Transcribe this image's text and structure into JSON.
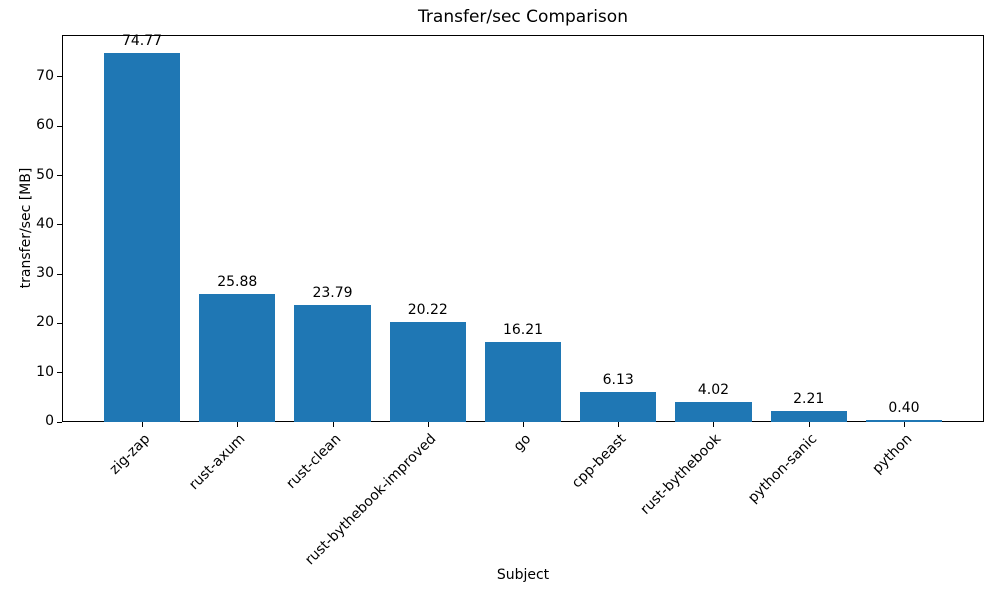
{
  "chart_data": {
    "type": "bar",
    "title": "Transfer/sec Comparison",
    "xlabel": "Subject",
    "ylabel": "transfer/sec [MB]",
    "categories": [
      "zig-zap",
      "rust-axum",
      "rust-clean",
      "rust-bythebook-improved",
      "go",
      "cpp-beast",
      "rust-bythebook",
      "python-sanic",
      "python"
    ],
    "values": [
      74.77,
      25.88,
      23.79,
      20.22,
      16.21,
      6.13,
      4.02,
      2.21,
      0.4
    ],
    "value_labels": [
      "74.77",
      "25.88",
      "23.79",
      "20.22",
      "16.21",
      "6.13",
      "4.02",
      "2.21",
      "0.40"
    ],
    "yticks": [
      0,
      10,
      20,
      30,
      40,
      50,
      60,
      70
    ],
    "ylim": [
      0,
      78.5
    ],
    "bar_color": "#1f77b4",
    "axis_color": "#000000",
    "background_color": "#ffffff",
    "grid": false,
    "legend_position": "none",
    "xtick_rotation_deg": 45
  }
}
